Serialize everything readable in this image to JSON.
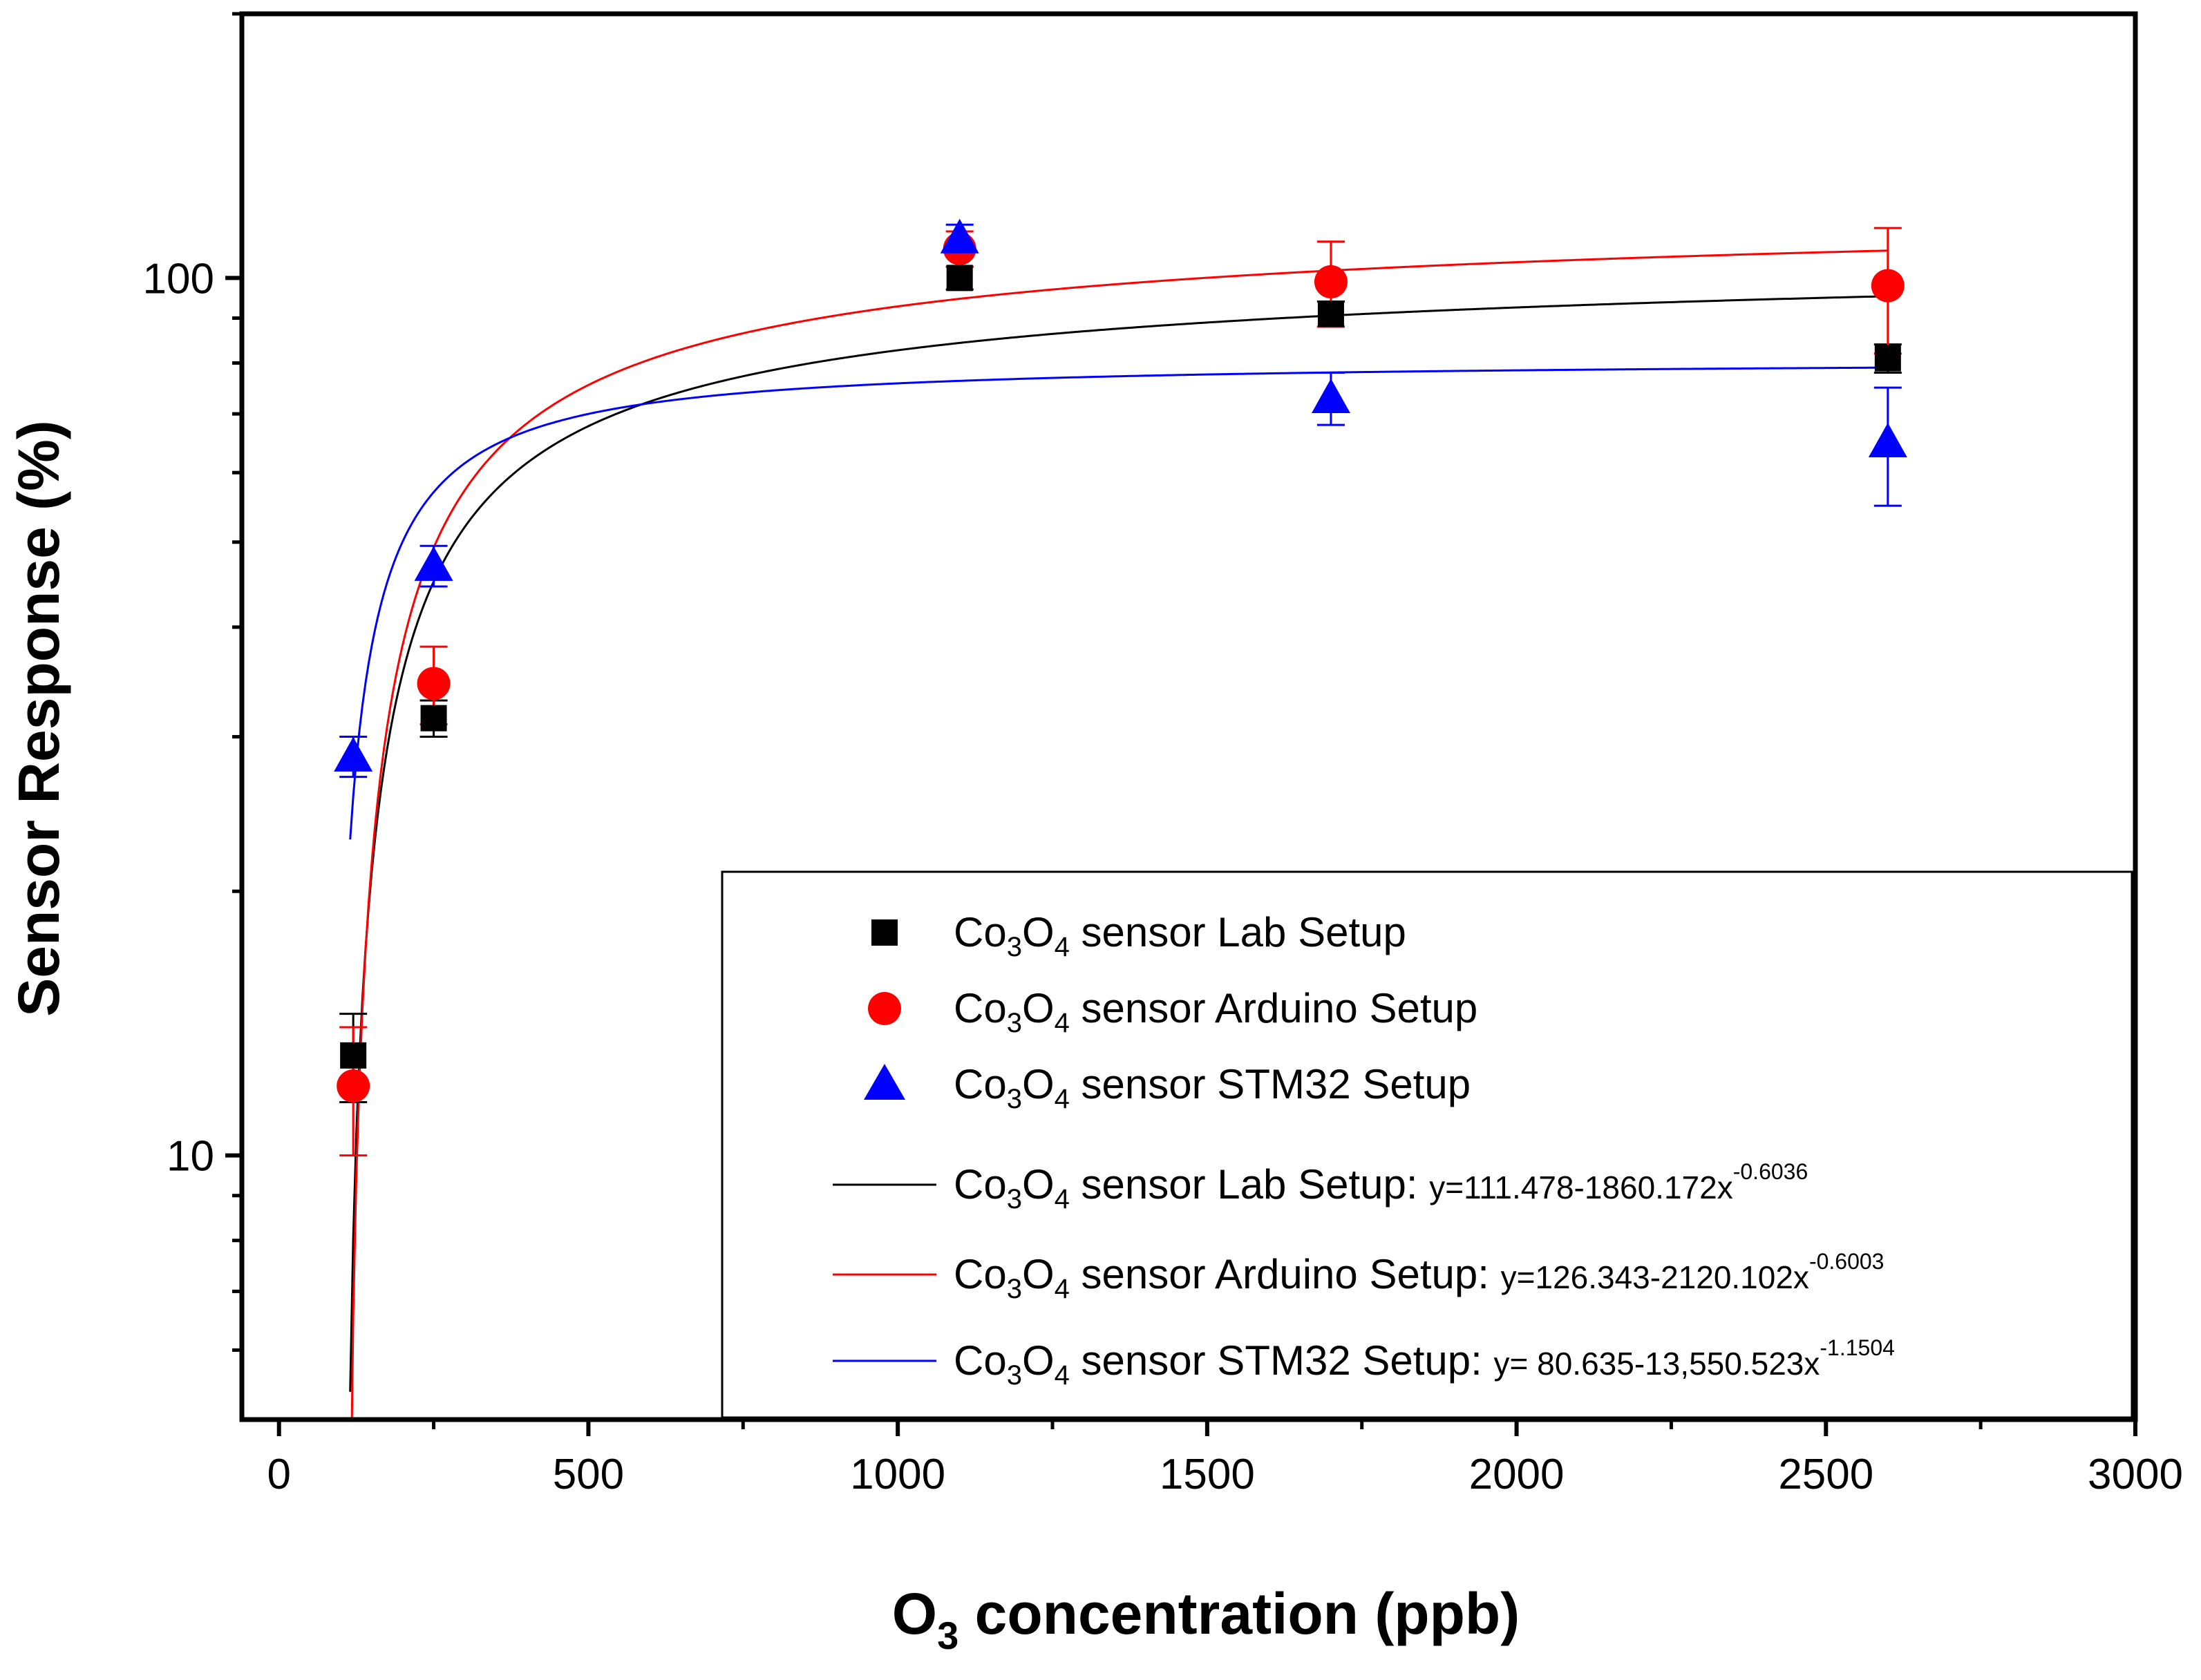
{
  "chart_data": {
    "type": "scatter",
    "title": "",
    "xlabel": {
      "main": "O",
      "sub": "3",
      "rest": " concentration (ppb)"
    },
    "ylabel": "Sensor Response (%)",
    "xlim": [
      -60,
      3000
    ],
    "ylim_log": [
      5,
      200
    ],
    "y_scale": "log",
    "x_ticks": [
      0,
      500,
      1000,
      1500,
      2000,
      2500,
      3000
    ],
    "x_tick_labels": [
      "0",
      "500",
      "1000",
      "1500",
      "2000",
      "2500",
      "3000"
    ],
    "y_ticks": [
      10,
      100
    ],
    "y_tick_labels": [
      "10",
      "100"
    ],
    "legend_position": "bottom-right",
    "series": [
      {
        "name": "Co3O4 sensor Lab Setup",
        "label_parts": [
          "Co",
          "3",
          "O",
          "4",
          " sensor Lab Setup"
        ],
        "marker": "square",
        "color": "#000000",
        "x": [
          120,
          250,
          1100,
          1700,
          2600
        ],
        "y": [
          13.0,
          31.5,
          100.0,
          91.0,
          81.0
        ],
        "err": [
          1.5,
          1.5,
          3.0,
          3.0,
          3.0
        ]
      },
      {
        "name": "Co3O4 sensor Arduino Setup",
        "label_parts": [
          "Co",
          "3",
          "O",
          "4",
          " sensor Arduino Setup"
        ],
        "marker": "circle",
        "color": "#ff0000",
        "x": [
          120,
          250,
          1100,
          1700,
          2600
        ],
        "y": [
          12.0,
          34.5,
          108.0,
          99.0,
          98.0
        ],
        "err": [
          2.0,
          3.5,
          5.0,
          11.0,
          16.0
        ]
      },
      {
        "name": "Co3O4 sensor STM32 Setup",
        "label_parts": [
          "Co",
          "3",
          "O",
          "4",
          " sensor STM32 Setup"
        ],
        "marker": "triangle",
        "color": "#0000ff",
        "x": [
          120,
          250,
          1100,
          1700,
          2600
        ],
        "y": [
          28.5,
          47.0,
          111.0,
          73.0,
          65.0
        ],
        "err": [
          1.5,
          2.5,
          4.0,
          5.0,
          10.0
        ]
      }
    ],
    "fits": [
      {
        "name": "Co3O4 sensor Lab Setup fit",
        "label_parts": [
          "Co",
          "3",
          "O",
          "4",
          " sensor Lab Setup: "
        ],
        "equation": "y=111.478-1860.172x",
        "exponent": "-0.6036",
        "color": "#000000",
        "a": 111.478,
        "b": 1860.172,
        "c": -0.6036,
        "x_range": [
          115,
          2600
        ]
      },
      {
        "name": "Co3O4 sensor Arduino Setup fit",
        "label_parts": [
          "Co",
          "3",
          "O",
          "4",
          " sensor Arduino Setup: "
        ],
        "equation": "y=126.343-2120.102x",
        "exponent": "-0.6003",
        "color": "#ff0000",
        "a": 126.343,
        "b": 2120.102,
        "c": -0.6003,
        "x_range": [
          115,
          2600
        ]
      },
      {
        "name": "Co3O4 sensor STM32 Setup fit",
        "label_parts": [
          "Co",
          "3",
          "O",
          "4",
          " sensor STM32 Setup: "
        ],
        "equation": "y= 80.635-13,550.523x",
        "exponent": "-1.1504",
        "color": "#0000ff",
        "a": 80.635,
        "b": 13550.523,
        "c": -1.1504,
        "x_range": [
          115,
          2600
        ]
      }
    ]
  }
}
